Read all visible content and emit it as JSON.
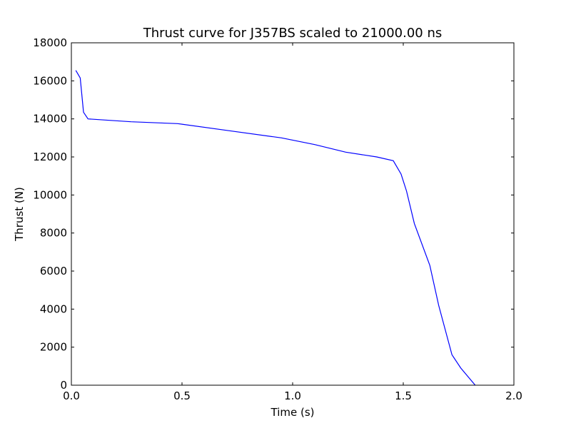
{
  "chart_data": {
    "type": "line",
    "title": "Thrust curve for J357BS scaled to 21000.00 ns",
    "xlabel": "Time (s)",
    "ylabel": "Thrust (N)",
    "xlim": [
      0.0,
      2.0
    ],
    "ylim": [
      0,
      18000
    ],
    "xticks": [
      "0.0",
      "0.5",
      "1.0",
      "1.5",
      "2.0"
    ],
    "yticks": [
      "0",
      "2000",
      "4000",
      "6000",
      "8000",
      "10000",
      "12000",
      "14000",
      "16000",
      "18000"
    ],
    "grid": false,
    "legend": "none",
    "line_color": "#0000ff",
    "series": [
      {
        "x": [
          0.02,
          0.04,
          0.055,
          0.075,
          0.27,
          0.48,
          0.7,
          0.95,
          1.1,
          1.24,
          1.38,
          1.455,
          1.49,
          1.515,
          1.55,
          1.62,
          1.66,
          1.72,
          1.76,
          1.825
        ],
        "y": [
          16550,
          16150,
          14350,
          14000,
          13850,
          13750,
          13400,
          13000,
          12650,
          12250,
          12000,
          11800,
          11100,
          10200,
          8500,
          6300,
          4200,
          1600,
          900,
          0
        ]
      }
    ]
  }
}
